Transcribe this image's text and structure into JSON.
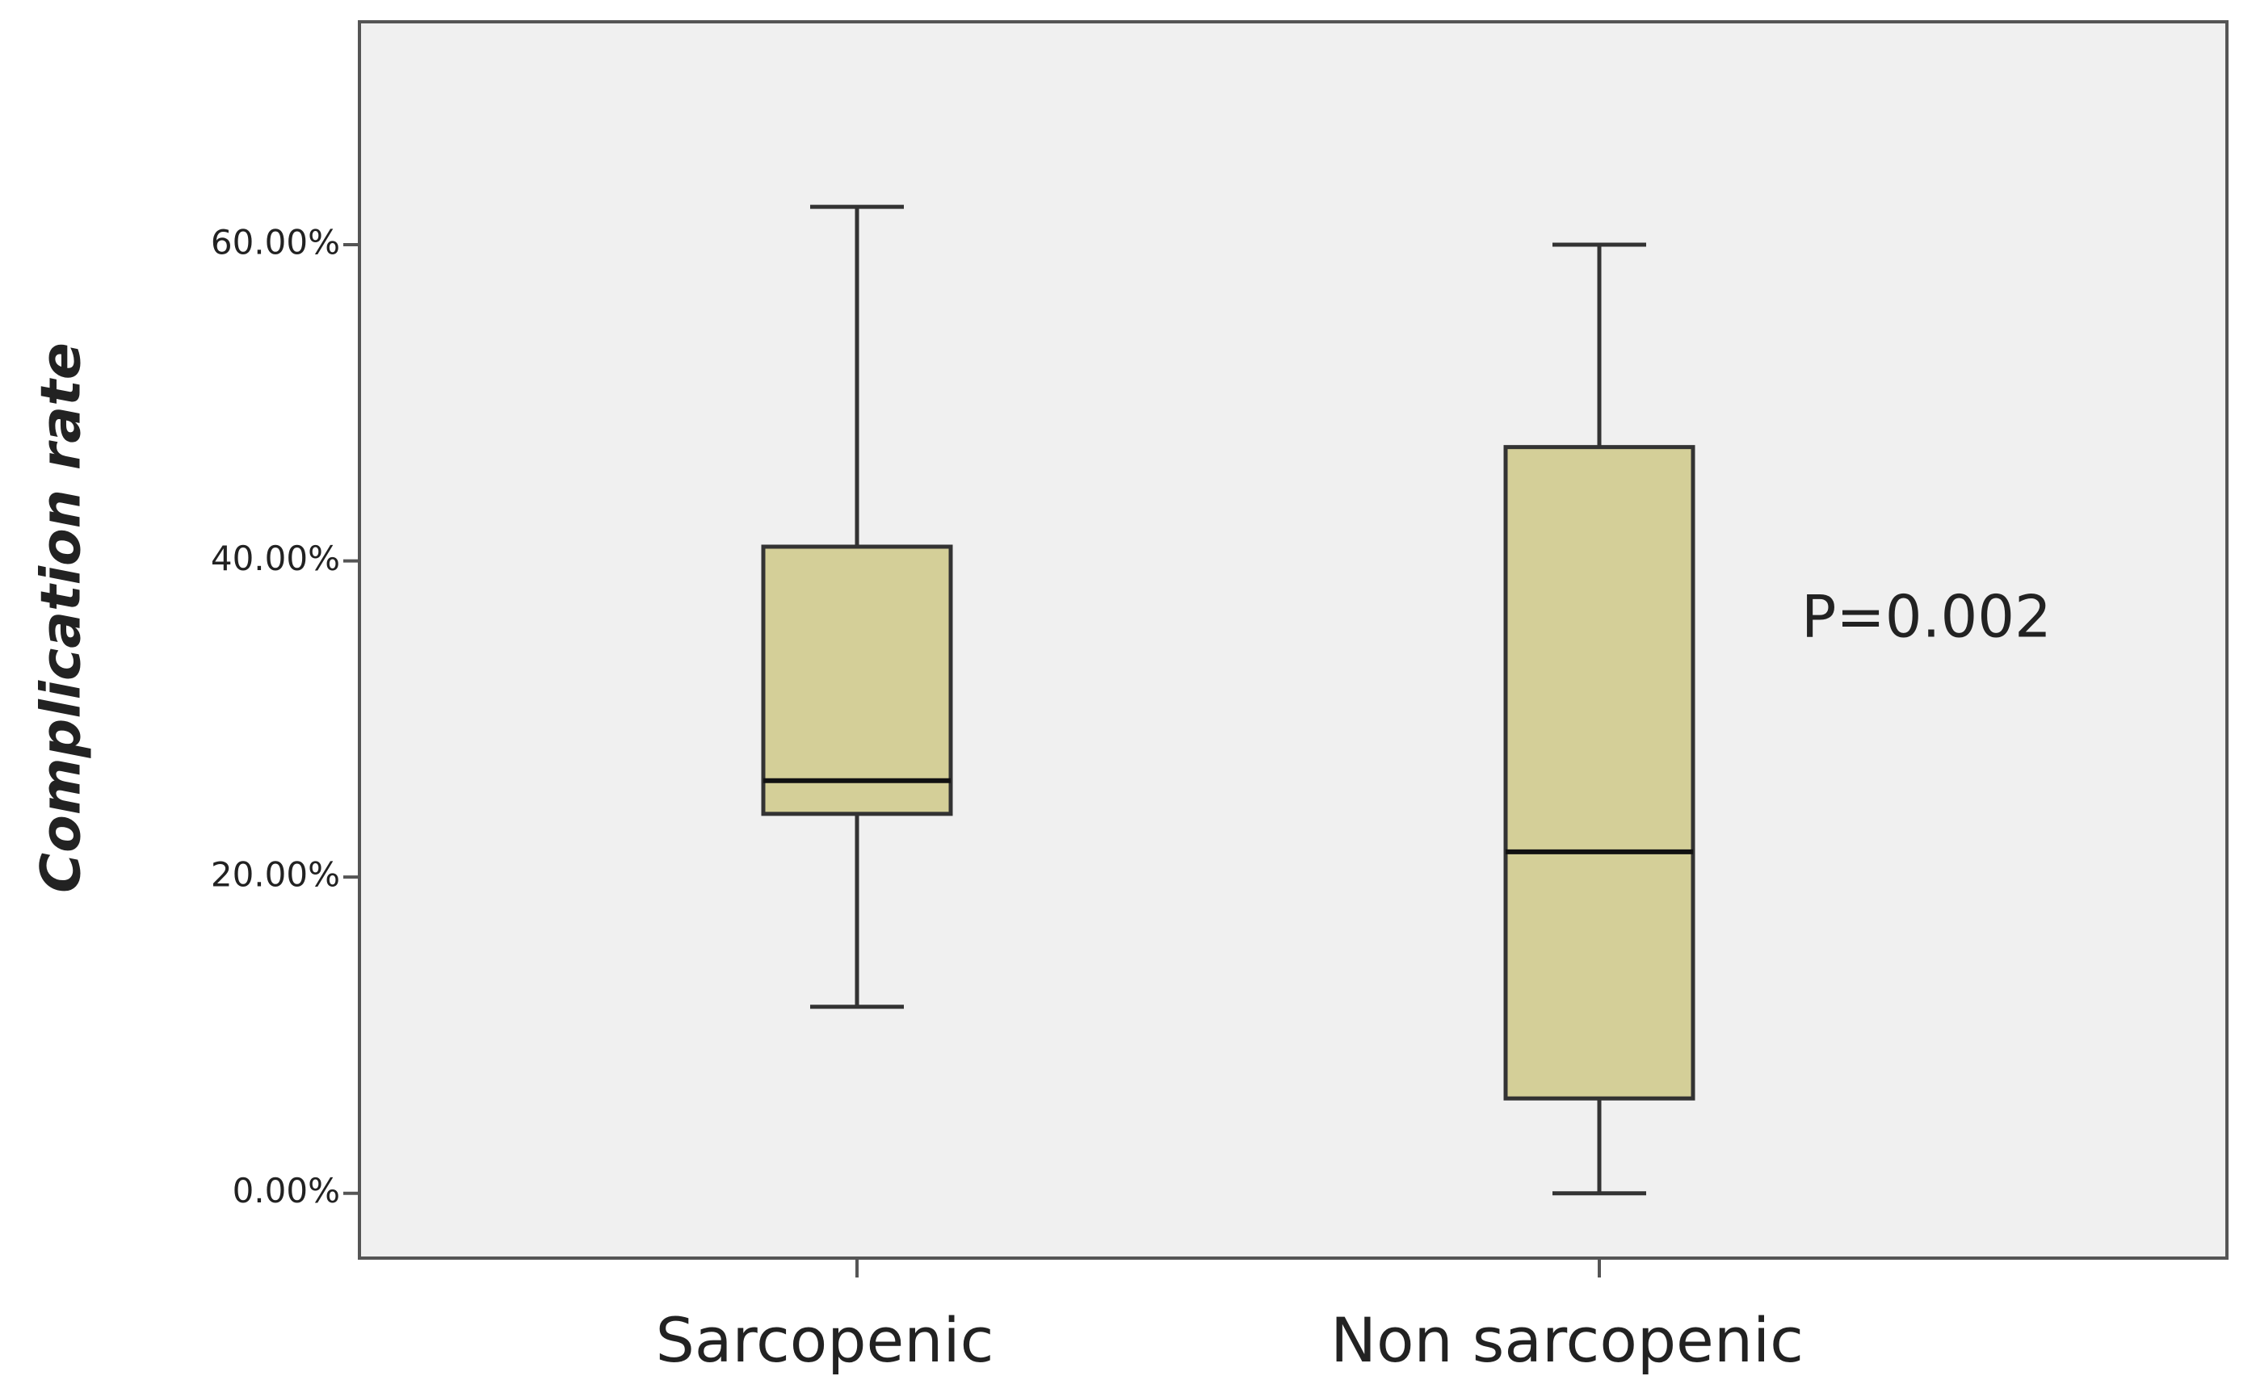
{
  "chart_data": {
    "type": "box",
    "y_label": "Complication rate",
    "annotation": "P=0.002",
    "categories": [
      "Sarcopenic",
      "Non sarcopenic"
    ],
    "boxes": [
      {
        "min": 11.8,
        "q1": 24.0,
        "median": 26.1,
        "q3": 40.9,
        "max": 62.4
      },
      {
        "min": 0,
        "q1": 6.0,
        "median": 21.6,
        "q3": 47.2,
        "max": 60.0
      }
    ],
    "color": "#d4cf98",
    "ylim": [
      -4.1,
      74.1
    ],
    "yticks": [
      {
        "value": 0,
        "label": "0.00%"
      },
      {
        "value": 20,
        "label": "20.00%"
      },
      {
        "value": 40,
        "label": "40.00%"
      },
      {
        "value": 60,
        "label": "60.00%"
      }
    ],
    "grid": false
  }
}
